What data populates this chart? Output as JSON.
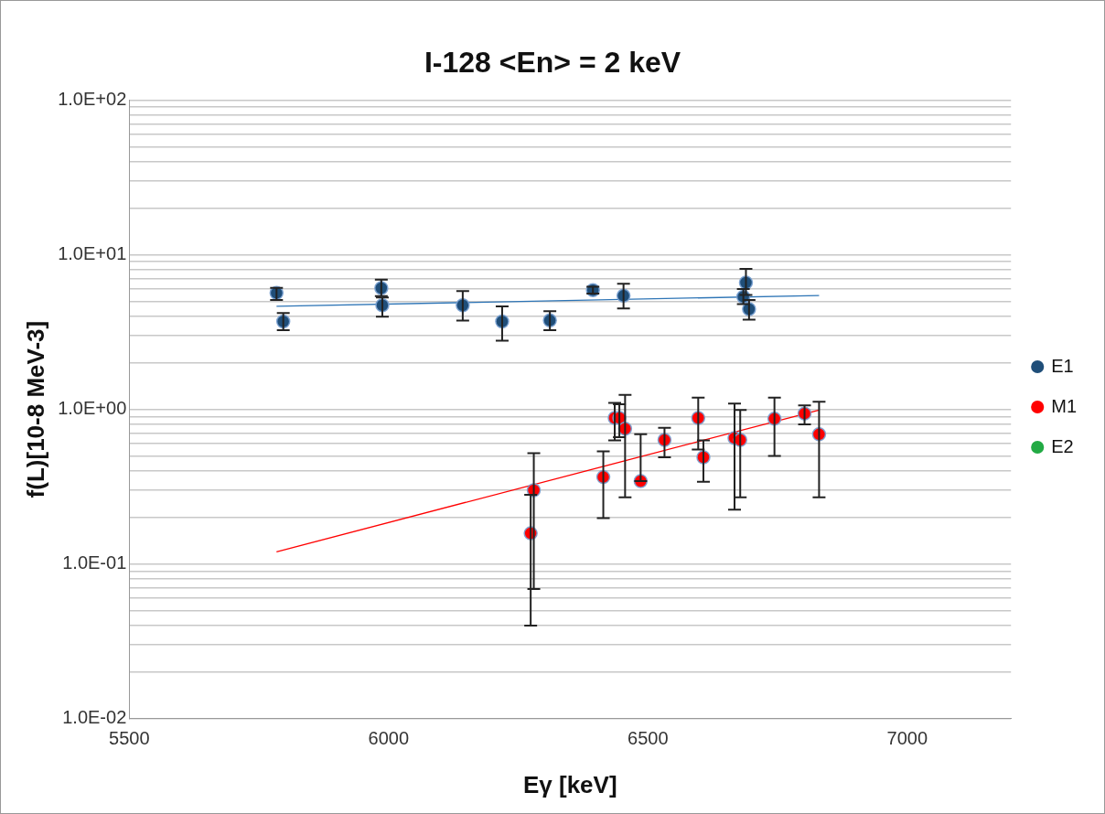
{
  "chart_data": {
    "type": "scatter",
    "title": "I-128 <En> = 2 keV",
    "xlabel": "Eγ [keV]",
    "ylabel": "f(L)[10-8 MeV-3]",
    "log": "y",
    "grid": "y",
    "legend": "right",
    "marker": "circle",
    "xlim": [
      5500,
      7200
    ],
    "xticks": [
      5500,
      6000,
      6500,
      7000
    ],
    "ylim": [
      0.01,
      100
    ],
    "yticks": [
      {
        "value": 0.01,
        "label": "1.0E-02"
      },
      {
        "value": 0.02,
        "label": null
      },
      {
        "value": 0.03,
        "label": null
      },
      {
        "value": 0.04,
        "label": null
      },
      {
        "value": 0.05,
        "label": null
      },
      {
        "value": 0.06,
        "label": null
      },
      {
        "value": 0.07,
        "label": null
      },
      {
        "value": 0.08,
        "label": null
      },
      {
        "value": 0.09,
        "label": null
      },
      {
        "value": 0.1,
        "label": "1.0E-01"
      },
      {
        "value": 0.2,
        "label": null
      },
      {
        "value": 0.3,
        "label": null
      },
      {
        "value": 0.4,
        "label": null
      },
      {
        "value": 0.5,
        "label": null
      },
      {
        "value": 0.6,
        "label": null
      },
      {
        "value": 0.7,
        "label": null
      },
      {
        "value": 0.8,
        "label": null
      },
      {
        "value": 0.9,
        "label": null
      },
      {
        "value": 1,
        "label": "1.0E+00"
      },
      {
        "value": 2,
        "label": null
      },
      {
        "value": 3,
        "label": null
      },
      {
        "value": 4,
        "label": null
      },
      {
        "value": 5,
        "label": null
      },
      {
        "value": 6,
        "label": null
      },
      {
        "value": 7,
        "label": null
      },
      {
        "value": 8,
        "label": null
      },
      {
        "value": 9,
        "label": null
      },
      {
        "value": 10,
        "label": "1.0E+01"
      },
      {
        "value": 20,
        "label": null
      },
      {
        "value": 30,
        "label": null
      },
      {
        "value": 40,
        "label": null
      },
      {
        "value": 50,
        "label": null
      },
      {
        "value": 60,
        "label": null
      },
      {
        "value": 70,
        "label": null
      },
      {
        "value": 80,
        "label": null
      },
      {
        "value": 90,
        "label": null
      },
      {
        "value": 100,
        "label": "1.0E+02"
      }
    ],
    "series": [
      {
        "name": "E1",
        "color": "#1f4e79",
        "x": [
          5784,
          5797,
          5986,
          5988,
          6143,
          6219,
          6311,
          6394,
          6453,
          6684,
          6689,
          6695
        ],
        "values": [
          5.66,
          3.7,
          6.08,
          4.71,
          4.71,
          3.7,
          3.76,
          5.9,
          5.43,
          5.35,
          6.6,
          4.45
        ],
        "errors": [
          [
            5.1,
            6.1
          ],
          [
            3.25,
            4.2
          ],
          [
            5.4,
            6.9
          ],
          [
            3.97,
            5.3
          ],
          [
            3.75,
            5.82
          ],
          [
            2.78,
            4.64
          ],
          [
            3.25,
            4.32
          ],
          [
            5.6,
            6.2
          ],
          [
            4.5,
            6.5
          ],
          [
            4.8,
            6.0
          ],
          [
            5.5,
            8.1
          ],
          [
            3.8,
            5.1
          ]
        ]
      },
      {
        "name": "M1",
        "color": "#ff0000",
        "x": [
          6274,
          6280,
          6414,
          6436,
          6445,
          6456,
          6486,
          6532,
          6597,
          6607,
          6667,
          6678,
          6744,
          6802,
          6830
        ],
        "values": [
          0.158,
          0.3,
          0.365,
          0.88,
          0.88,
          0.75,
          0.344,
          0.634,
          0.88,
          0.49,
          0.653,
          0.634,
          0.87,
          0.94,
          0.69
        ],
        "errors": [
          [
            0.04,
            0.28
          ],
          [
            0.069,
            0.52
          ],
          [
            0.198,
            0.535
          ],
          [
            0.63,
            1.1
          ],
          [
            0.66,
            1.08
          ],
          [
            0.27,
            1.24
          ],
          [
            0.344,
            0.69
          ],
          [
            0.49,
            0.76
          ],
          [
            0.55,
            1.19
          ],
          [
            0.34,
            0.63
          ],
          [
            0.225,
            1.09
          ],
          [
            0.27,
            0.99
          ],
          [
            0.5,
            1.19
          ],
          [
            0.8,
            1.06
          ],
          [
            0.27,
            1.12
          ]
        ]
      },
      {
        "name": "E2",
        "color": "#22aa44"
      },
      {
        "type": "line",
        "color": "#2e75b6",
        "marker": "none",
        "x": [
          5784,
          6830
        ],
        "values": [
          4.64,
          5.45
        ]
      },
      {
        "type": "line",
        "color": "#ff0000",
        "marker": "none",
        "x": [
          5784,
          6830
        ],
        "values": [
          0.12,
          0.99
        ]
      }
    ]
  }
}
